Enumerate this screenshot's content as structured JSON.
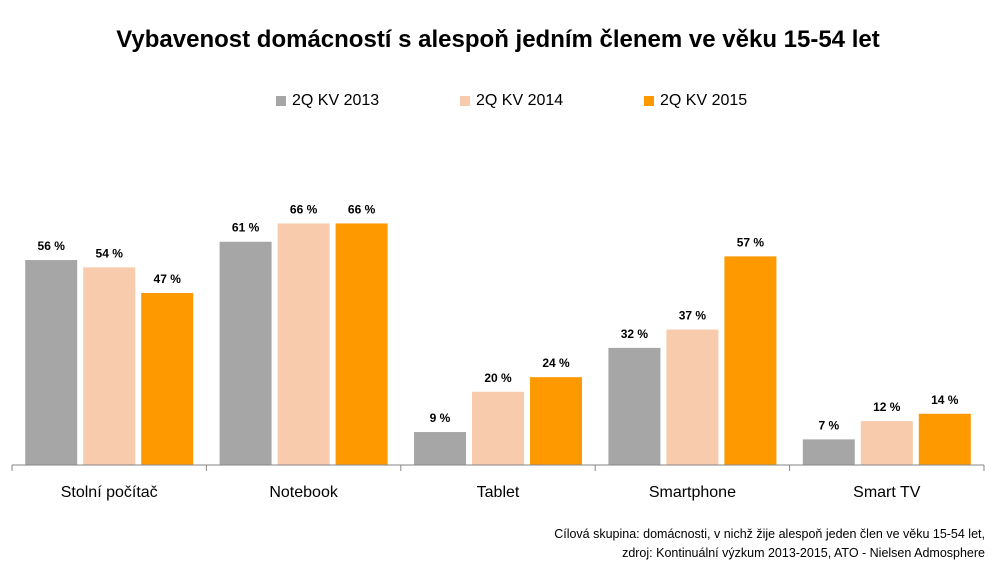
{
  "chart_data": {
    "type": "bar",
    "title": "Vybavenost domácností s alespoň jedním členem ve věku 15-54 let",
    "categories": [
      "Stolní počítač",
      "Notebook",
      "Tablet",
      "Smartphone",
      "Smart TV"
    ],
    "series": [
      {
        "name": "2Q KV 2013",
        "color": "#a6a6a6",
        "values": [
          56,
          61,
          9,
          32,
          7
        ]
      },
      {
        "name": "2Q KV 2014",
        "color": "#f8cbad",
        "values": [
          54,
          66,
          20,
          37,
          12
        ]
      },
      {
        "name": "2Q KV 2015",
        "color": "#ff9900",
        "values": [
          47,
          66,
          24,
          57,
          14
        ]
      }
    ],
    "value_suffix": " %",
    "ylim": [
      0,
      70
    ],
    "grid": false,
    "legend_position": "top"
  },
  "footnote": {
    "line1": "Cílová skupina: domácnosti, v nichž žije alespoň jeden člen ve věku 15-54 let,",
    "line2": "zdroj: Kontinuální výzkum 2013-2015, ATO - Nielsen Admosphere"
  }
}
